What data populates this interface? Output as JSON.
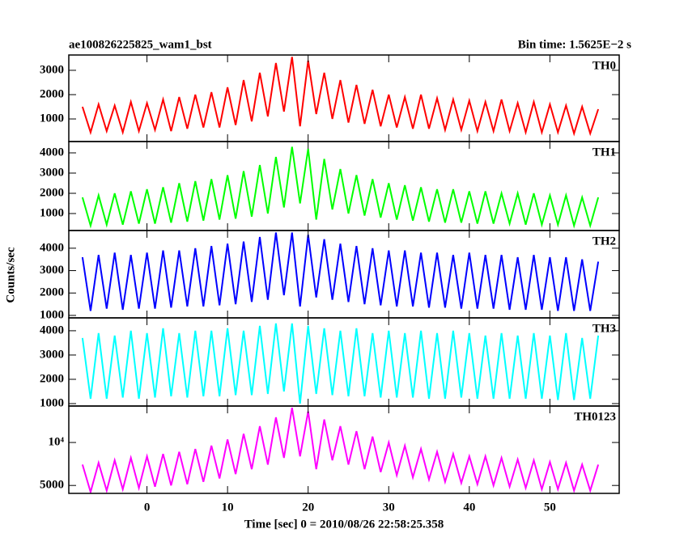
{
  "chart_data": [
    {
      "type": "line",
      "title": "ae100826225825_wam1_bst",
      "subtitle": "Bin time: 1.5625E−2 s",
      "x": [
        -8,
        -7,
        -6,
        -5,
        -4,
        -3,
        -2,
        -1,
        0,
        1,
        2,
        3,
        4,
        5,
        6,
        7,
        8,
        9,
        10,
        11,
        12,
        13,
        14,
        15,
        16,
        17,
        18,
        19,
        20,
        21,
        22,
        23,
        24,
        25,
        26,
        27,
        28,
        29,
        30,
        31,
        32,
        33,
        34,
        35,
        36,
        37,
        38,
        39,
        40,
        41,
        42,
        43,
        44,
        45,
        46,
        47,
        48,
        49,
        50,
        51,
        52,
        53,
        54,
        55,
        56
      ],
      "xlim": [
        -9.7,
        58.6
      ],
      "ylim": [
        70,
        3630
      ],
      "yticks": [
        1000,
        2000,
        3000
      ],
      "series": [
        {
          "name": "TH0",
          "color": "#ff0000",
          "values": [
            1500,
            450,
            1600,
            500,
            1550,
            450,
            1700,
            500,
            1650,
            550,
            1800,
            500,
            1900,
            600,
            2000,
            650,
            2100,
            650,
            2300,
            750,
            2600,
            900,
            2900,
            1100,
            3300,
            1300,
            3550,
            700,
            3400,
            1200,
            2900,
            1000,
            2600,
            850,
            2400,
            800,
            2200,
            700,
            2000,
            650,
            1900,
            600,
            2000,
            600,
            1850,
            550,
            1800,
            550,
            1750,
            500,
            1700,
            500,
            1800,
            500,
            1650,
            450,
            1700,
            450,
            1600,
            450,
            1550,
            400,
            1500,
            400,
            1400
          ]
        }
      ]
    },
    {
      "type": "line",
      "x": [
        -8,
        -7,
        -6,
        -5,
        -4,
        -3,
        -2,
        -1,
        0,
        1,
        2,
        3,
        4,
        5,
        6,
        7,
        8,
        9,
        10,
        11,
        12,
        13,
        14,
        15,
        16,
        17,
        18,
        19,
        20,
        21,
        22,
        23,
        24,
        25,
        26,
        27,
        28,
        29,
        30,
        31,
        32,
        33,
        34,
        35,
        36,
        37,
        38,
        39,
        40,
        41,
        42,
        43,
        44,
        45,
        46,
        47,
        48,
        49,
        50,
        51,
        52,
        53,
        54,
        55,
        56
      ],
      "xlim": [
        -9.7,
        58.6
      ],
      "ylim": [
        160,
        4560
      ],
      "yticks": [
        1000,
        2000,
        3000,
        4000
      ],
      "series": [
        {
          "name": "TH1",
          "color": "#00ff00",
          "values": [
            1800,
            400,
            1900,
            450,
            2000,
            450,
            2100,
            500,
            2200,
            500,
            2300,
            550,
            2500,
            600,
            2600,
            650,
            2700,
            700,
            2900,
            750,
            3100,
            850,
            3400,
            1000,
            3800,
            1300,
            4300,
            1500,
            4200,
            700,
            3700,
            1200,
            3200,
            1000,
            2900,
            900,
            2700,
            800,
            2500,
            700,
            2400,
            650,
            2300,
            600,
            2200,
            550,
            2200,
            550,
            2100,
            500,
            2100,
            500,
            2000,
            500,
            2000,
            450,
            2000,
            450,
            1900,
            450,
            1900,
            400,
            1800,
            400,
            1800
          ]
        }
      ]
    },
    {
      "type": "line",
      "ylabel": "Counts/sec",
      "x": [
        -8,
        -7,
        -6,
        -5,
        -4,
        -3,
        -2,
        -1,
        0,
        1,
        2,
        3,
        4,
        5,
        6,
        7,
        8,
        9,
        10,
        11,
        12,
        13,
        14,
        15,
        16,
        17,
        18,
        19,
        20,
        21,
        22,
        23,
        24,
        25,
        26,
        27,
        28,
        29,
        30,
        31,
        32,
        33,
        34,
        35,
        36,
        37,
        38,
        39,
        40,
        41,
        42,
        43,
        44,
        45,
        46,
        47,
        48,
        49,
        50,
        51,
        52,
        53,
        54,
        55,
        56
      ],
      "xlim": [
        -9.7,
        58.6
      ],
      "ylim": [
        890,
        4790
      ],
      "yticks": [
        1000,
        2000,
        3000,
        4000
      ],
      "series": [
        {
          "name": "TH2",
          "color": "#0000ff",
          "values": [
            3600,
            1200,
            3700,
            1300,
            3800,
            1250,
            3700,
            1300,
            3800,
            1300,
            3900,
            1350,
            3900,
            1400,
            4000,
            1400,
            4100,
            1450,
            4200,
            1500,
            4300,
            1600,
            4500,
            1700,
            4700,
            1900,
            4700,
            1400,
            4600,
            1800,
            4400,
            1700,
            4200,
            1600,
            4100,
            1500,
            4000,
            1450,
            3900,
            1400,
            3900,
            1400,
            3800,
            1350,
            3800,
            1350,
            3700,
            1300,
            3800,
            1300,
            3700,
            1300,
            3700,
            1250,
            3600,
            1250,
            3700,
            1250,
            3600,
            1200,
            3600,
            1200,
            3500,
            1200,
            3400
          ]
        }
      ]
    },
    {
      "type": "line",
      "x": [
        -8,
        -7,
        -6,
        -5,
        -4,
        -3,
        -2,
        -1,
        0,
        1,
        2,
        3,
        4,
        5,
        6,
        7,
        8,
        9,
        10,
        11,
        12,
        13,
        14,
        15,
        16,
        17,
        18,
        19,
        20,
        21,
        22,
        23,
        24,
        25,
        26,
        27,
        28,
        29,
        30,
        31,
        32,
        33,
        34,
        35,
        36,
        37,
        38,
        39,
        40,
        41,
        42,
        43,
        44,
        45,
        46,
        47,
        48,
        49,
        50,
        51,
        52,
        53,
        54,
        55,
        56
      ],
      "xlim": [
        -9.7,
        58.6
      ],
      "ylim": [
        900,
        4530
      ],
      "yticks": [
        1000,
        2000,
        3000,
        4000
      ],
      "series": [
        {
          "name": "TH3",
          "color": "#00ffff",
          "values": [
            3700,
            1200,
            3900,
            1200,
            3800,
            1250,
            4000,
            1200,
            3900,
            1250,
            4100,
            1300,
            3900,
            1250,
            4000,
            1300,
            4000,
            1300,
            4100,
            1350,
            4000,
            1350,
            4200,
            1400,
            4300,
            1500,
            4300,
            1000,
            4200,
            1400,
            4100,
            1350,
            4000,
            1300,
            4100,
            1300,
            3900,
            1250,
            4000,
            1250,
            3900,
            1250,
            4000,
            1200,
            3900,
            1200,
            4000,
            1250,
            3900,
            1200,
            3800,
            1200,
            3900,
            1200,
            3800,
            1200,
            3900,
            1200,
            3800,
            1150,
            3900,
            1150,
            3700,
            1200,
            3800
          ]
        }
      ]
    },
    {
      "type": "line",
      "xlabel": "Time [sec] 0 = 2010/08/26 22:58:25.358",
      "x": [
        -8,
        -7,
        -6,
        -5,
        -4,
        -3,
        -2,
        -1,
        0,
        1,
        2,
        3,
        4,
        5,
        6,
        7,
        8,
        9,
        10,
        11,
        12,
        13,
        14,
        15,
        16,
        17,
        18,
        19,
        20,
        21,
        22,
        23,
        24,
        25,
        26,
        27,
        28,
        29,
        30,
        31,
        32,
        33,
        34,
        35,
        36,
        37,
        38,
        39,
        40,
        41,
        42,
        43,
        44,
        45,
        46,
        47,
        48,
        49,
        50,
        51,
        52,
        53,
        54,
        55,
        56
      ],
      "xlim": [
        -9.7,
        58.6
      ],
      "xticks": [
        0,
        10,
        20,
        30,
        40,
        50
      ],
      "ylim": [
        4400,
        18000
      ],
      "log_y": true,
      "yticks": [
        5000,
        {
          "value": 10000,
          "label": "10⁴"
        }
      ],
      "series": [
        {
          "name": "TH0123",
          "color": "#ff00ff",
          "values": [
            7000,
            4500,
            7200,
            4600,
            7500,
            4700,
            7800,
            4800,
            8000,
            4900,
            8300,
            5000,
            8600,
            5100,
            9000,
            5300,
            9500,
            5600,
            10500,
            6000,
            11500,
            6500,
            13000,
            7000,
            15000,
            7800,
            17500,
            8000,
            16500,
            6500,
            14500,
            7500,
            13000,
            7000,
            12000,
            6500,
            11000,
            6200,
            10000,
            5900,
            9500,
            5700,
            9000,
            5500,
            8600,
            5300,
            8300,
            5200,
            8000,
            5100,
            8000,
            5000,
            7800,
            4900,
            7600,
            4800,
            7500,
            4700,
            7300,
            4700,
            7200,
            4600,
            7000,
            4600,
            7000
          ]
        }
      ]
    }
  ]
}
